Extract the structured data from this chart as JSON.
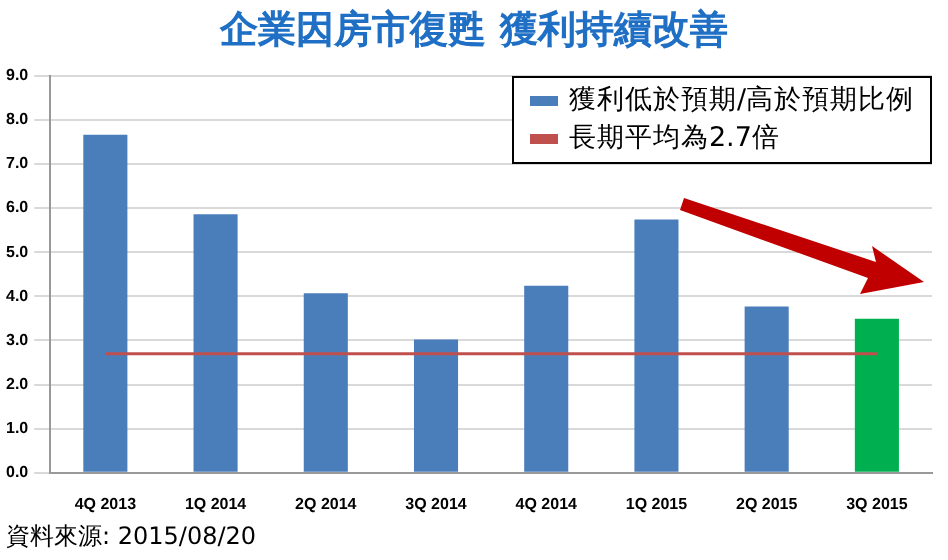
{
  "chart_data": {
    "type": "bar",
    "title": "企業因房市復甦  獲利持續改善",
    "categories": [
      "4Q 2013",
      "1Q 2014",
      "2Q 2014",
      "3Q 2014",
      "4Q 2014",
      "1Q 2015",
      "2Q 2015",
      "3Q 2015"
    ],
    "series": [
      {
        "name": "獲利低於預期/高於預期比例",
        "color": "#4a7ebb",
        "colors": [
          "#4a7ebb",
          "#4a7ebb",
          "#4a7ebb",
          "#4a7ebb",
          "#4a7ebb",
          "#4a7ebb",
          "#4a7ebb",
          "#00b050"
        ],
        "values": [
          7.66,
          5.86,
          4.07,
          3.02,
          4.24,
          5.74,
          3.77,
          3.49
        ]
      }
    ],
    "ylim": [
      0,
      9
    ],
    "yticks": [
      {
        "value": 0,
        "label": "0.0"
      },
      {
        "value": 1,
        "label": "1.0"
      },
      {
        "value": 2,
        "label": "2.0"
      },
      {
        "value": 3,
        "label": "3.0"
      },
      {
        "value": 4,
        "label": "4.0"
      },
      {
        "value": 5,
        "label": "5.0"
      },
      {
        "value": 6,
        "label": "6.0"
      },
      {
        "value": 7,
        "label": "7.0"
      },
      {
        "value": 8,
        "label": "8.0"
      },
      {
        "value": 9,
        "label": "9.0"
      }
    ],
    "ref_lines": [
      {
        "axis": "y",
        "value": 2.7,
        "label": "長期平均為2.7倍",
        "color": "#c0504d"
      }
    ],
    "grid": "y",
    "legend": "top right",
    "annotations": [
      "資料來源: 2015/08/20"
    ]
  }
}
